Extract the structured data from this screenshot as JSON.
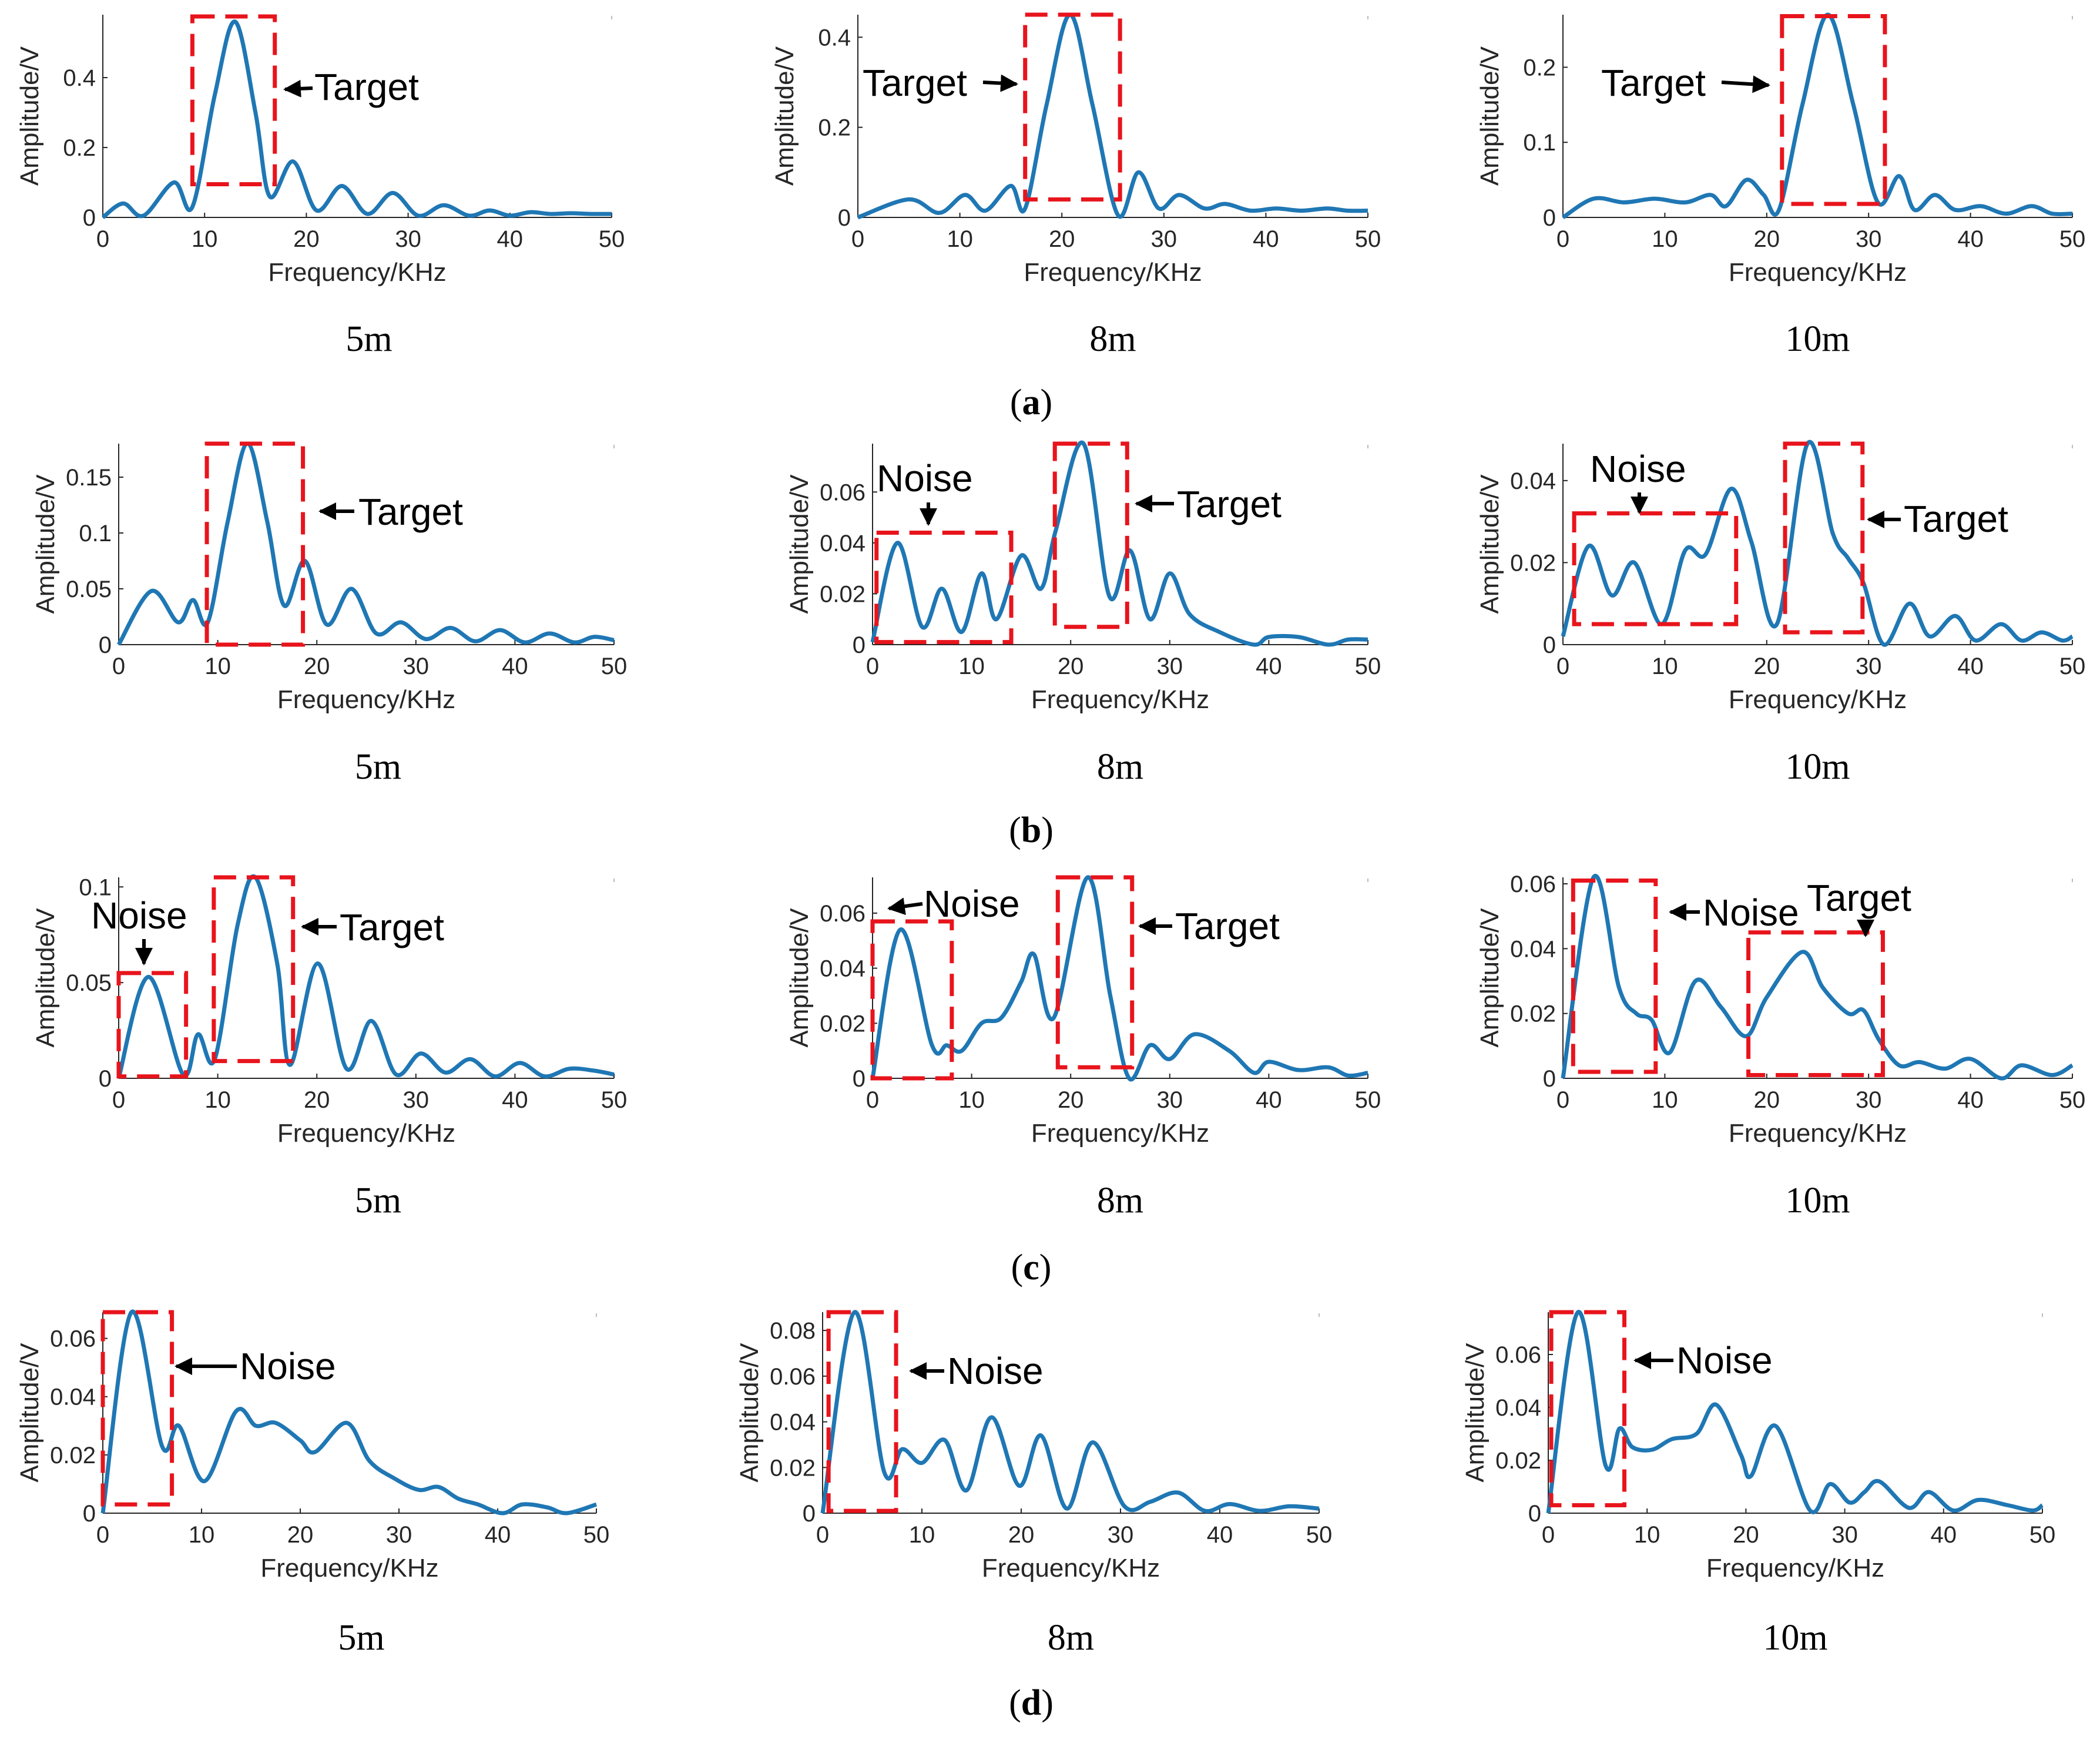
{
  "colors": {
    "line": "#1f77b4",
    "box": "#e8141c",
    "axis": "#262626",
    "arrow": "#000000"
  },
  "rows": [
    {
      "pre": "(",
      "letter": "a",
      "post": ")"
    },
    {
      "pre": "(",
      "letter": "b",
      "post": ")"
    },
    {
      "pre": "(",
      "letter": "c",
      "post": ")"
    },
    {
      "pre": "(",
      "letter": "d",
      "post": ")"
    }
  ],
  "chart_data": [
    {
      "type": "line",
      "row": 0,
      "col": 0,
      "distance": "5m",
      "xlabel": "Frequency/KHz",
      "ylabel": "Amplitude/V",
      "xlim": [
        0,
        50
      ],
      "ylim": [
        0,
        0.58
      ],
      "xticks": [
        0,
        10,
        20,
        30,
        40,
        50
      ],
      "yticks": [
        0,
        0.2,
        0.4
      ],
      "ytick_labels": [
        "0",
        "0.2",
        "0.4"
      ],
      "x": [
        0,
        2,
        4,
        7,
        8.8,
        11,
        13,
        15,
        16.4,
        18.7,
        21,
        23.5,
        26,
        28.5,
        31,
        33.5,
        36,
        38,
        40,
        42,
        44,
        46,
        48,
        50
      ],
      "y": [
        0,
        0.04,
        0.005,
        0.1,
        0.03,
        0.35,
        0.56,
        0.3,
        0.06,
        0.16,
        0.02,
        0.09,
        0.01,
        0.07,
        0.005,
        0.035,
        0.005,
        0.02,
        0.005,
        0.015,
        0.01,
        0.012,
        0.01,
        0.01
      ],
      "boxes": [
        {
          "x0": 8.8,
          "x1": 16.9,
          "y0": 0.095,
          "y1": 0.575,
          "label": "Target"
        }
      ]
    },
    {
      "type": "line",
      "row": 0,
      "col": 1,
      "distance": "8m",
      "xlabel": "Frequency/KHz",
      "ylabel": "Amplitude/V",
      "xlim": [
        0,
        50
      ],
      "ylim": [
        0,
        0.45
      ],
      "xticks": [
        0,
        10,
        20,
        30,
        40,
        50
      ],
      "yticks": [
        0,
        0.2,
        0.4
      ],
      "ytick_labels": [
        "0",
        "0.2",
        "0.4"
      ],
      "x": [
        0,
        5,
        8,
        10.5,
        12.5,
        15,
        16.4,
        18.5,
        20.8,
        23,
        25.5,
        27.5,
        29.5,
        31.5,
        34,
        36,
        38.5,
        41,
        43.5,
        46,
        48,
        50
      ],
      "y": [
        0,
        0.04,
        0.01,
        0.05,
        0.015,
        0.07,
        0.02,
        0.25,
        0.45,
        0.25,
        0.005,
        0.1,
        0.02,
        0.05,
        0.02,
        0.03,
        0.015,
        0.02,
        0.015,
        0.02,
        0.015,
        0.015
      ],
      "boxes": [
        {
          "x0": 16.4,
          "x1": 25.7,
          "y0": 0.04,
          "y1": 0.45,
          "label": "Target"
        }
      ]
    },
    {
      "type": "line",
      "row": 0,
      "col": 2,
      "distance": "10m",
      "xlabel": "Frequency/KHz",
      "ylabel": "Amplitude/V",
      "xlim": [
        0,
        50
      ],
      "ylim": [
        0,
        0.27
      ],
      "xticks": [
        0,
        10,
        20,
        30,
        40,
        50
      ],
      "yticks": [
        0,
        0.1,
        0.2
      ],
      "ytick_labels": [
        "0",
        "0.1",
        "0.2"
      ],
      "x": [
        0,
        3,
        6,
        9,
        12,
        14.5,
        16,
        18,
        19.7,
        21.2,
        23.5,
        26,
        28.5,
        30.9,
        33,
        34.5,
        36.5,
        38.5,
        41,
        43.5,
        46,
        48,
        50
      ],
      "y": [
        0,
        0.025,
        0.02,
        0.025,
        0.02,
        0.03,
        0.015,
        0.05,
        0.03,
        0.01,
        0.15,
        0.27,
        0.15,
        0.02,
        0.055,
        0.01,
        0.03,
        0.01,
        0.015,
        0.005,
        0.015,
        0.005,
        0.005
      ],
      "boxes": [
        {
          "x0": 21.5,
          "x1": 31.6,
          "y0": 0.018,
          "y1": 0.268,
          "label": "Target"
        }
      ]
    },
    {
      "type": "line",
      "row": 1,
      "col": 0,
      "distance": "5m",
      "xlabel": "Frequency/KHz",
      "ylabel": "Amplitude/V",
      "xlim": [
        0,
        50
      ],
      "ylim": [
        0,
        0.18
      ],
      "xticks": [
        0,
        10,
        20,
        30,
        40,
        50
      ],
      "yticks": [
        0,
        0.05,
        0.1,
        0.15
      ],
      "ytick_labels": [
        "0",
        "0.05",
        "0.1",
        "0.15"
      ],
      "x": [
        0,
        3.3,
        6,
        7.5,
        9,
        11,
        13,
        15,
        16.7,
        18.8,
        21,
        23.5,
        26,
        28.5,
        31,
        33.5,
        36,
        38.5,
        41,
        43.5,
        46,
        48,
        50
      ],
      "y": [
        0,
        0.048,
        0.02,
        0.04,
        0.02,
        0.11,
        0.18,
        0.11,
        0.035,
        0.075,
        0.018,
        0.05,
        0.01,
        0.02,
        0.005,
        0.015,
        0.003,
        0.013,
        0.002,
        0.01,
        0.002,
        0.007,
        0.004
      ],
      "boxes": [
        {
          "x0": 8.9,
          "x1": 18.6,
          "y0": 0.0,
          "y1": 0.18,
          "label": "Target"
        }
      ]
    },
    {
      "type": "line",
      "row": 1,
      "col": 1,
      "distance": "8m",
      "xlabel": "Frequency/KHz",
      "ylabel": "Amplitude/V",
      "xlim": [
        0,
        50
      ],
      "ylim": [
        0,
        0.079
      ],
      "xticks": [
        0,
        10,
        20,
        30,
        40,
        50
      ],
      "yticks": [
        0,
        0.02,
        0.04,
        0.06
      ],
      "ytick_labels": [
        "0",
        "0.02",
        "0.04",
        "0.06"
      ],
      "x": [
        0,
        2.5,
        5,
        7,
        9,
        11,
        12.5,
        15,
        17,
        18.5,
        21.3,
        23.9,
        26,
        28,
        30,
        32,
        35,
        38.5,
        40,
        43,
        46,
        48,
        50
      ],
      "y": [
        0.001,
        0.04,
        0.007,
        0.022,
        0.005,
        0.028,
        0.01,
        0.035,
        0.022,
        0.045,
        0.079,
        0.019,
        0.037,
        0.01,
        0.028,
        0.012,
        0.005,
        0.0,
        0.003,
        0.003,
        0.0,
        0.002,
        0.002
      ],
      "boxes": [
        {
          "x0": 0.4,
          "x1": 14.0,
          "y0": 0.001,
          "y1": 0.044,
          "label": "Noise"
        },
        {
          "x0": 18.4,
          "x1": 25.7,
          "y0": 0.007,
          "y1": 0.079,
          "label": "Target"
        }
      ]
    },
    {
      "type": "line",
      "row": 1,
      "col": 2,
      "distance": "10m",
      "xlabel": "Frequency/KHz",
      "ylabel": "Amplitude/V",
      "xlim": [
        0,
        50
      ],
      "ylim": [
        0,
        0.049
      ],
      "xticks": [
        0,
        10,
        20,
        30,
        40,
        50
      ],
      "yticks": [
        0,
        0.02,
        0.04
      ],
      "ytick_labels": [
        "0",
        "0.02",
        "0.04"
      ],
      "x": [
        0,
        2.5,
        4.8,
        7,
        9.7,
        12,
        14,
        16.5,
        18.5,
        21,
        24,
        26.5,
        28,
        29.5,
        31.5,
        34,
        36,
        38.5,
        40.5,
        43,
        45,
        47,
        49,
        50
      ],
      "y": [
        0.002,
        0.024,
        0.012,
        0.02,
        0.005,
        0.023,
        0.022,
        0.038,
        0.025,
        0.005,
        0.049,
        0.027,
        0.021,
        0.015,
        0.0,
        0.01,
        0.002,
        0.007,
        0.001,
        0.005,
        0.001,
        0.003,
        0.001,
        0.002
      ],
      "boxes": [
        {
          "x0": 1.1,
          "x1": 17.0,
          "y0": 0.005,
          "y1": 0.032,
          "label": "Noise"
        },
        {
          "x0": 21.8,
          "x1": 29.4,
          "y0": 0.003,
          "y1": 0.049,
          "label": "Target"
        }
      ]
    },
    {
      "type": "line",
      "row": 2,
      "col": 0,
      "distance": "5m",
      "xlabel": "Frequency/KHz",
      "ylabel": "Amplitude/V",
      "xlim": [
        0,
        50
      ],
      "ylim": [
        0,
        0.105
      ],
      "xticks": [
        0,
        10,
        20,
        30,
        40,
        50
      ],
      "yticks": [
        0,
        0.05,
        0.1
      ],
      "ytick_labels": [
        "0",
        "0.05",
        "0.1"
      ],
      "x": [
        0,
        3,
        6.5,
        8,
        9.7,
        12,
        13.8,
        16,
        17.3,
        20.1,
        23,
        25.5,
        28,
        30.5,
        33,
        35.5,
        38,
        40.5,
        43,
        45.5,
        48,
        50
      ],
      "y": [
        0,
        0.053,
        0.002,
        0.023,
        0.01,
        0.08,
        0.105,
        0.06,
        0.007,
        0.06,
        0.005,
        0.03,
        0.002,
        0.013,
        0.003,
        0.01,
        0.001,
        0.008,
        0.001,
        0.005,
        0.004,
        0.002
      ],
      "boxes": [
        {
          "x0": 0.0,
          "x1": 6.8,
          "y0": 0.001,
          "y1": 0.055,
          "label": "Noise"
        },
        {
          "x0": 9.6,
          "x1": 17.6,
          "y0": 0.009,
          "y1": 0.105,
          "label": "Target"
        }
      ]
    },
    {
      "type": "line",
      "row": 2,
      "col": 1,
      "distance": "8m",
      "xlabel": "Frequency/KHz",
      "ylabel": "Amplitude/V",
      "xlim": [
        0,
        50
      ],
      "ylim": [
        0,
        0.073
      ],
      "xticks": [
        0,
        10,
        20,
        30,
        40,
        50
      ],
      "yticks": [
        0,
        0.02,
        0.04,
        0.06
      ],
      "ytick_labels": [
        "0",
        "0.02",
        "0.04",
        "0.06"
      ],
      "x": [
        0,
        2.8,
        6,
        7.5,
        9,
        11,
        13,
        15,
        16.3,
        18.3,
        21.7,
        24,
        25.9,
        28,
        30,
        32.5,
        36,
        38.5,
        40,
        43,
        46,
        48,
        50
      ],
      "y": [
        0,
        0.054,
        0.012,
        0.012,
        0.01,
        0.02,
        0.022,
        0.035,
        0.045,
        0.022,
        0.073,
        0.03,
        0.0,
        0.012,
        0.007,
        0.016,
        0.01,
        0.002,
        0.006,
        0.003,
        0.004,
        0.001,
        0.002
      ],
      "boxes": [
        {
          "x0": 0.0,
          "x1": 8.0,
          "y0": 0.0,
          "y1": 0.057,
          "label": "Noise"
        },
        {
          "x0": 18.7,
          "x1": 26.2,
          "y0": 0.004,
          "y1": 0.073,
          "label": "Target"
        }
      ]
    },
    {
      "type": "line",
      "row": 2,
      "col": 2,
      "distance": "10m",
      "xlabel": "Frequency/KHz",
      "ylabel": "Amplitude/V",
      "xlim": [
        0,
        50
      ],
      "ylim": [
        0,
        0.062
      ],
      "xticks": [
        0,
        10,
        20,
        30,
        40,
        50
      ],
      "yticks": [
        0,
        0.02,
        0.04,
        0.06
      ],
      "ytick_labels": [
        "0",
        "0.02",
        "0.04",
        "0.06"
      ],
      "x": [
        0,
        3,
        5.5,
        7.2,
        8.7,
        10.5,
        13,
        15.5,
        18,
        20,
        23.5,
        25.5,
        28,
        29.5,
        31,
        33,
        35,
        37.5,
        40,
        43,
        45,
        48,
        50
      ],
      "y": [
        0,
        0.062,
        0.028,
        0.02,
        0.018,
        0.008,
        0.03,
        0.022,
        0.013,
        0.025,
        0.039,
        0.028,
        0.02,
        0.021,
        0.012,
        0.004,
        0.005,
        0.003,
        0.006,
        0.0,
        0.004,
        0.001,
        0.004
      ],
      "boxes": [
        {
          "x0": 1.0,
          "x1": 9.1,
          "y0": 0.002,
          "y1": 0.061,
          "label": "Noise"
        },
        {
          "x0": 18.2,
          "x1": 31.4,
          "y0": 0.001,
          "y1": 0.045,
          "label": "Target"
        }
      ]
    },
    {
      "type": "line",
      "row": 3,
      "col": 0,
      "distance": "5m",
      "xlabel": "Frequency/KHz",
      "ylabel": "Amplitude/V",
      "xlim": [
        0,
        50
      ],
      "ylim": [
        0,
        0.069
      ],
      "xticks": [
        0,
        10,
        20,
        30,
        40,
        50
      ],
      "yticks": [
        0,
        0.02,
        0.04,
        0.06
      ],
      "ytick_labels": [
        "0",
        "0.02",
        "0.04",
        "0.06"
      ],
      "x": [
        0,
        2.9,
        6,
        7.7,
        10.3,
        13.5,
        15.5,
        17.5,
        20,
        21.5,
        24.7,
        27,
        29.5,
        32,
        34,
        36,
        38,
        40.5,
        42.5,
        45,
        47,
        50
      ],
      "y": [
        0,
        0.069,
        0.023,
        0.03,
        0.011,
        0.035,
        0.03,
        0.031,
        0.025,
        0.021,
        0.031,
        0.018,
        0.012,
        0.008,
        0.009,
        0.005,
        0.003,
        0.0,
        0.003,
        0.002,
        0.0,
        0.003
      ],
      "boxes": [
        {
          "x0": 0.0,
          "x1": 7.0,
          "y0": 0.003,
          "y1": 0.069,
          "label": "Noise"
        }
      ]
    },
    {
      "type": "line",
      "row": 3,
      "col": 1,
      "distance": "8m",
      "xlabel": "Frequency/KHz",
      "ylabel": "Amplitude/V",
      "xlim": [
        0,
        50
      ],
      "ylim": [
        0,
        0.088
      ],
      "xticks": [
        0,
        10,
        20,
        30,
        40,
        50
      ],
      "yticks": [
        0,
        0.02,
        0.04,
        0.06,
        0.08
      ],
      "ytick_labels": [
        "0",
        "0.02",
        "0.04",
        "0.06",
        "0.08"
      ],
      "x": [
        0,
        3.2,
        6.2,
        8,
        10,
        12.3,
        14.5,
        17,
        19.8,
        22,
        24.6,
        27.2,
        30.4,
        33,
        35.8,
        38.5,
        41,
        44,
        47,
        50
      ],
      "y": [
        0,
        0.088,
        0.018,
        0.028,
        0.022,
        0.032,
        0.01,
        0.042,
        0.012,
        0.034,
        0.002,
        0.031,
        0.003,
        0.005,
        0.009,
        0.001,
        0.004,
        0.001,
        0.003,
        0.002
      ],
      "boxes": [
        {
          "x0": 0.6,
          "x1": 7.4,
          "y0": 0.001,
          "y1": 0.088,
          "label": "Noise"
        }
      ]
    },
    {
      "type": "line",
      "row": 3,
      "col": 2,
      "distance": "10m",
      "xlabel": "Frequency/KHz",
      "ylabel": "Amplitude/V",
      "xlim": [
        0,
        50
      ],
      "ylim": [
        0,
        0.076
      ],
      "xticks": [
        0,
        10,
        20,
        30,
        40,
        50
      ],
      "yticks": [
        0,
        0.02,
        0.04,
        0.06
      ],
      "ytick_labels": [
        "0",
        "0.02",
        "0.04",
        "0.06"
      ],
      "x": [
        0,
        3,
        5.8,
        7.2,
        8.5,
        10.5,
        12.5,
        15,
        17,
        19.5,
        20.5,
        23,
        26.5,
        28.5,
        30.5,
        32,
        33.5,
        36.5,
        38.5,
        41,
        43.5,
        46.5,
        49,
        50
      ],
      "y": [
        0,
        0.076,
        0.018,
        0.032,
        0.025,
        0.024,
        0.028,
        0.03,
        0.041,
        0.022,
        0.014,
        0.033,
        0.001,
        0.011,
        0.004,
        0.008,
        0.012,
        0.002,
        0.008,
        0.001,
        0.005,
        0.003,
        0.001,
        0.003
      ],
      "boxes": [
        {
          "x0": 0.3,
          "x1": 7.7,
          "y0": 0.003,
          "y1": 0.076,
          "label": "Noise"
        }
      ]
    }
  ]
}
